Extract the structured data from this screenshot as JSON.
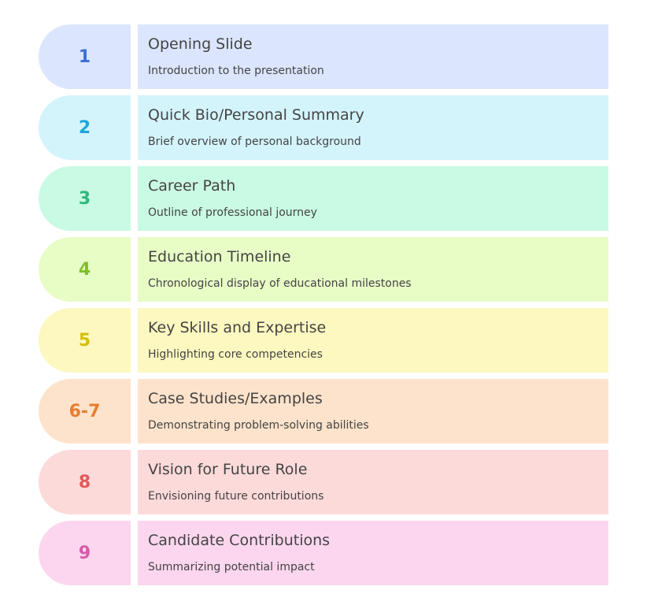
{
  "items": [
    {
      "number": "1",
      "title": "Opening Slide",
      "description": "Introduction to the presentation",
      "bg": "#dbe6fe",
      "accent": "#3b6fd6"
    },
    {
      "number": "2",
      "title": "Quick Bio/Personal Summary",
      "description": "Brief overview of personal background",
      "bg": "#d4f4fc",
      "accent": "#1ea5dc"
    },
    {
      "number": "3",
      "title": "Career Path",
      "description": "Outline of professional journey",
      "bg": "#c9fae3",
      "accent": "#2eb87c"
    },
    {
      "number": "4",
      "title": "Education Timeline",
      "description": "Chronological display of educational milestones",
      "bg": "#e8fcc6",
      "accent": "#7fbf2a"
    },
    {
      "number": "5",
      "title": "Key Skills and Expertise",
      "description": "Highlighting core competencies",
      "bg": "#fcf8c0",
      "accent": "#d4c000"
    },
    {
      "number": "6-7",
      "title": "Case Studies/Examples",
      "description": "Demonstrating problem-solving abilities",
      "bg": "#fde3cb",
      "accent": "#e77e30"
    },
    {
      "number": "8",
      "title": "Vision for Future Role",
      "description": "Envisioning future contributions",
      "bg": "#fddada",
      "accent": "#e25858"
    },
    {
      "number": "9",
      "title": "Candidate Contributions",
      "description": "Summarizing potential impact",
      "bg": "#fbd6ee",
      "accent": "#d85aa8"
    }
  ]
}
